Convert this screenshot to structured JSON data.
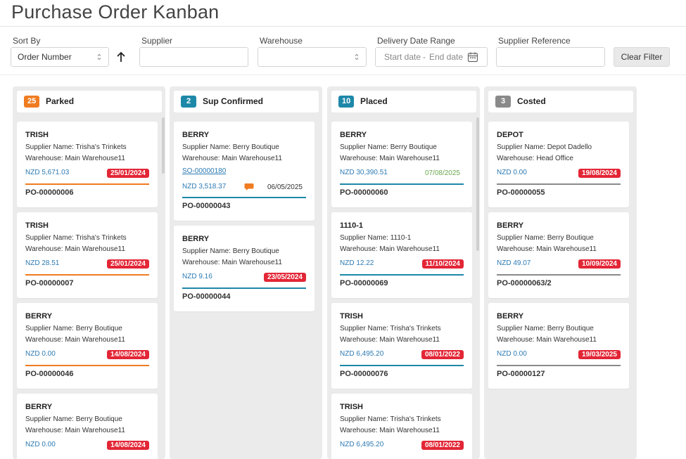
{
  "page": {
    "title": "Purchase Order Kanban"
  },
  "filters": {
    "sort_by_label": "Sort By",
    "sort_by_value": "Order Number",
    "supplier_label": "Supplier",
    "warehouse_label": "Warehouse",
    "delivery_label": "Delivery Date Range",
    "start_placeholder": "Start date",
    "date_sep": "-",
    "end_placeholder": "End date",
    "supplier_ref_label": "Supplier Reference",
    "clear_label": "Clear Filter"
  },
  "colors": {
    "parked": "#f07c21",
    "sup_confirmed": "#1e88a8",
    "placed": "#1e88a8",
    "costed": "#8a8a8a",
    "date_red": "#e32636",
    "date_green": "#6aa84f"
  },
  "columns": [
    {
      "count": "25",
      "title": "Parked",
      "cards": [
        {
          "code": "TRISH",
          "supplier": "Supplier Name: Trisha's Trinkets",
          "warehouse": "Warehouse: Main Warehouse11",
          "amount": "NZD 5,671.03",
          "date": "25/01/2024",
          "po": "PO-00000006"
        },
        {
          "code": "TRISH",
          "supplier": "Supplier Name: Trisha's Trinkets",
          "warehouse": "Warehouse: Main Warehouse11",
          "amount": "NZD 28.51",
          "date": "25/01/2024",
          "po": "PO-00000007"
        },
        {
          "code": "BERRY",
          "supplier": "Supplier Name: Berry Boutique",
          "warehouse": "Warehouse: Main Warehouse11",
          "amount": "NZD 0.00",
          "date": "14/08/2024",
          "po": "PO-00000046"
        },
        {
          "code": "BERRY",
          "supplier": "Supplier Name: Berry Boutique",
          "warehouse": "Warehouse: Main Warehouse11",
          "amount": "NZD 0.00",
          "date": "14/08/2024",
          "po": ""
        }
      ]
    },
    {
      "count": "2",
      "title": "Sup Confirmed",
      "cards": [
        {
          "code": "BERRY",
          "supplier": "Supplier Name: Berry Boutique",
          "warehouse": "Warehouse: Main Warehouse11",
          "link": "SO-00000180",
          "amount": "NZD 3,518.37",
          "date": "06/05/2025",
          "po": "PO-00000043"
        },
        {
          "code": "BERRY",
          "supplier": "Supplier Name: Berry Boutique",
          "warehouse": "Warehouse: Main Warehouse11",
          "amount": "NZD 9.16",
          "date": "23/05/2024",
          "po": "PO-00000044"
        }
      ]
    },
    {
      "count": "10",
      "title": "Placed",
      "cards": [
        {
          "code": "BERRY",
          "supplier": "Supplier Name: Berry Boutique",
          "warehouse": "Warehouse: Main Warehouse11",
          "amount": "NZD 30,390.51",
          "date": "07/08/2025",
          "po": "PO-00000060"
        },
        {
          "code": "1110-1",
          "supplier": "Supplier Name: 1110-1",
          "warehouse": "Warehouse: Main Warehouse11",
          "amount": "NZD 12.22",
          "date": "11/10/2024",
          "po": "PO-00000069"
        },
        {
          "code": "TRISH",
          "supplier": "Supplier Name: Trisha's Trinkets",
          "warehouse": "Warehouse: Main Warehouse11",
          "amount": "NZD 6,495.20",
          "date": "08/01/2022",
          "po": "PO-00000076"
        },
        {
          "code": "TRISH",
          "supplier": "Supplier Name: Trisha's Trinkets",
          "warehouse": "Warehouse: Main Warehouse11",
          "amount": "NZD 6,495.20",
          "date": "08/01/2022",
          "po": ""
        }
      ]
    },
    {
      "count": "3",
      "title": "Costed",
      "cards": [
        {
          "code": "DEPOT",
          "supplier": "Supplier Name: Depot Dadello",
          "warehouse": "Warehouse: Head Office",
          "amount": "NZD 0.00",
          "date": "19/08/2024",
          "po": "PO-00000055"
        },
        {
          "code": "BERRY",
          "supplier": "Supplier Name: Berry Boutique",
          "warehouse": "Warehouse: Main Warehouse11",
          "amount": "NZD 49.07",
          "date": "10/09/2024",
          "po": "PO-00000063/2"
        },
        {
          "code": "BERRY",
          "supplier": "Supplier Name: Berry Boutique",
          "warehouse": "Warehouse: Main Warehouse11",
          "amount": "NZD 0.00",
          "date": "19/03/2025",
          "po": "PO-00000127"
        }
      ]
    }
  ]
}
